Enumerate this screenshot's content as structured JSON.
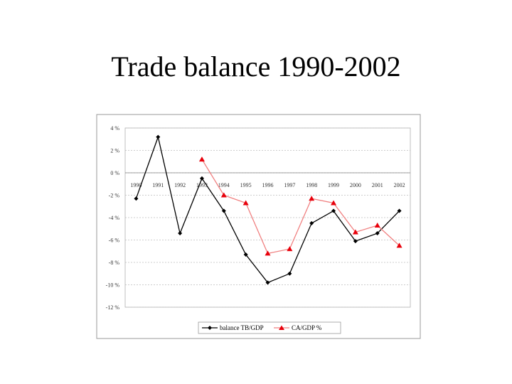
{
  "slide": {
    "title": "Trade balance 1990-2002"
  },
  "chart_data": {
    "type": "line",
    "title": "",
    "xlabel": "",
    "ylabel": "",
    "categories": [
      "1990",
      "1991",
      "1992",
      "1993",
      "1994",
      "1995",
      "1996",
      "1997",
      "1998",
      "1999",
      "2000",
      "2001",
      "2002"
    ],
    "ylim": [
      -12,
      4
    ],
    "yticks": [
      4,
      2,
      0,
      -2,
      -4,
      -6,
      -8,
      -10,
      -12
    ],
    "ytick_labels": [
      "4 %",
      "2 %",
      "0 %",
      "-2 %",
      "-4 %",
      "-6 %",
      "-8 %",
      "-10 %",
      "-12 %"
    ],
    "grid": true,
    "legend_position": "bottom",
    "series": [
      {
        "name": "balance TB/GDP",
        "color": "#000000",
        "marker": "diamond",
        "values": [
          -2.3,
          3.2,
          -5.4,
          -0.5,
          -3.4,
          -7.3,
          -9.8,
          -9.0,
          -4.5,
          -3.4,
          -6.1,
          -5.4,
          -3.4
        ]
      },
      {
        "name": "CA/GDP %",
        "color": "#e8000b",
        "line_color": "#f08080",
        "marker": "triangle",
        "values": [
          null,
          null,
          null,
          1.2,
          -2.0,
          -2.7,
          -7.2,
          -6.8,
          -2.3,
          -2.7,
          -5.3,
          -4.7,
          -6.5
        ]
      }
    ]
  }
}
